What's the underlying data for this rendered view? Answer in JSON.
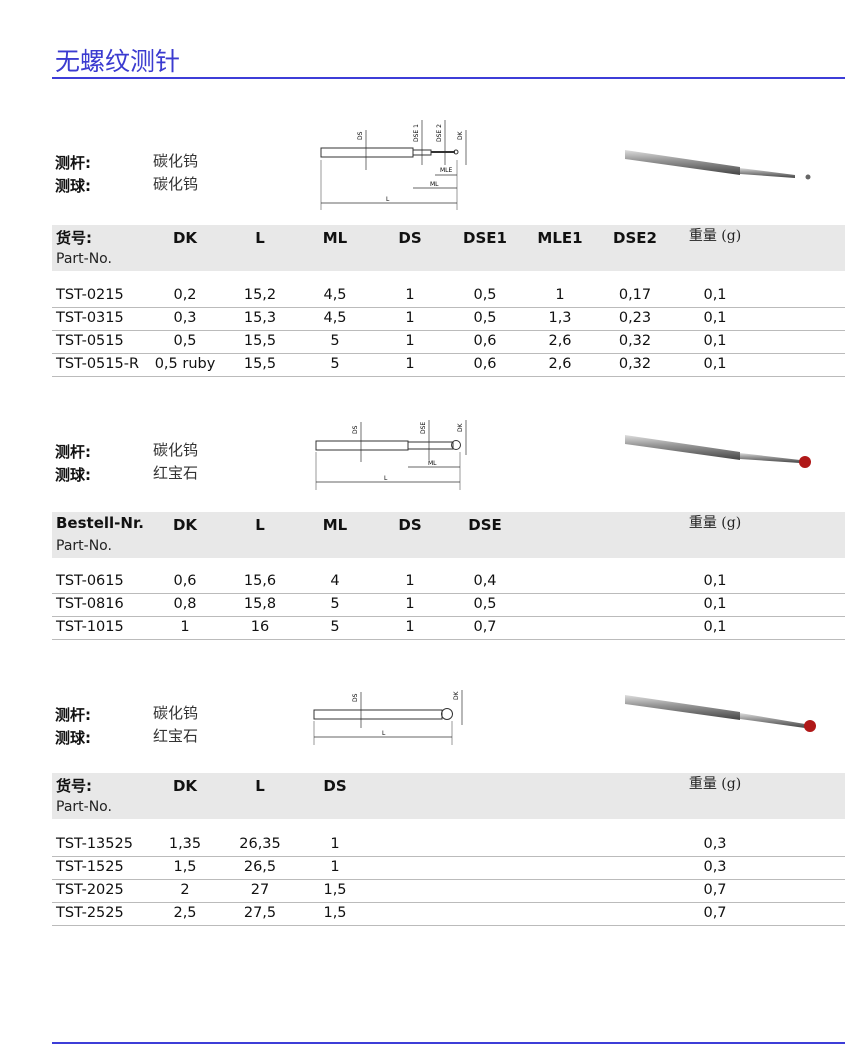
{
  "title": "无螺纹测针",
  "label_shaft": "测杆:",
  "label_ball": "测球:",
  "sections": [
    {
      "shaft": "碳化钨",
      "ball": "碳化钨",
      "header_main": "货号:",
      "header_sub": "Part-No.",
      "weight": "重量 (g)",
      "columns": [
        "DK",
        "L",
        "ML",
        "DS",
        "DSE1",
        "MLE1",
        "DSE2"
      ],
      "rows": [
        [
          "TST-0215",
          "0,2",
          "15,2",
          "4,5",
          "1",
          "0,5",
          "1",
          "0,17",
          "0,1"
        ],
        [
          "TST-0315",
          "0,3",
          "15,3",
          "4,5",
          "1",
          "0,5",
          "1,3",
          "0,23",
          "0,1"
        ],
        [
          "TST-0515",
          "0,5",
          "15,5",
          "5",
          "1",
          "0,6",
          "2,6",
          "0,32",
          "0,1"
        ],
        [
          "TST-0515-R",
          "0,5 ruby",
          "15,5",
          "5",
          "1",
          "0,6",
          "2,6",
          "0,32",
          "0,1"
        ]
      ],
      "diagram_labels": [
        "DS",
        "DSE 1",
        "DSE 2",
        "DK",
        "MLE",
        "ML",
        "L"
      ]
    },
    {
      "shaft": "碳化钨",
      "ball": "红宝石",
      "header_main": "Bestell-Nr.",
      "header_sub": "Part-No.",
      "weight": "重量 (g)",
      "columns": [
        "DK",
        "L",
        "ML",
        "DS",
        "DSE"
      ],
      "rows": [
        [
          "TST-0615",
          "0,6",
          "15,6",
          "4",
          "1",
          "0,4",
          "0,1"
        ],
        [
          "TST-0816",
          "0,8",
          "15,8",
          "5",
          "1",
          "0,5",
          "0,1"
        ],
        [
          "TST-1015",
          "1",
          "16",
          "5",
          "1",
          "0,7",
          "0,1"
        ]
      ],
      "diagram_labels": [
        "DS",
        "DSE",
        "DK",
        "ML",
        "L"
      ]
    },
    {
      "shaft": "碳化钨",
      "ball": "红宝石",
      "header_main": "货号:",
      "header_sub": "Part-No.",
      "weight": "重量 (g)",
      "columns": [
        "DK",
        "L",
        "DS"
      ],
      "rows": [
        [
          "TST-13525",
          "1,35",
          "26,35",
          "1",
          "0,3"
        ],
        [
          "TST-1525",
          "1,5",
          "26,5",
          "1",
          "0,3"
        ],
        [
          "TST-2025",
          "2",
          "27",
          "1,5",
          "0,7"
        ],
        [
          "TST-2525",
          "2,5",
          "27,5",
          "1,5",
          "0,7"
        ]
      ],
      "diagram_labels": [
        "DS",
        "DK",
        "L"
      ]
    }
  ],
  "colors": {
    "title": "#3b3bd0",
    "rule": "#3d3dd8",
    "band": "#e8e8e8",
    "ruby": "#b01818"
  }
}
